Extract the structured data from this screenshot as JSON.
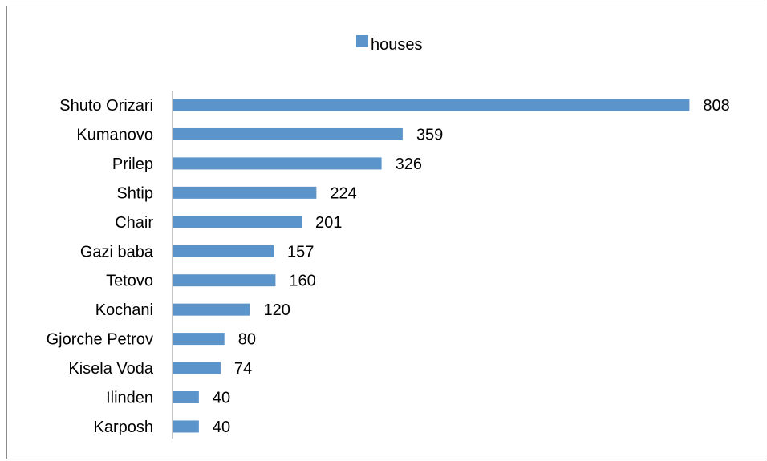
{
  "chart_data": {
    "type": "bar",
    "orientation": "horizontal",
    "categories": [
      "Shuto Orizari",
      "Kumanovo",
      "Prilep",
      "Shtip",
      "Chair",
      "Gazi baba",
      "Tetovo",
      "Kochani",
      "Gjorche Petrov",
      "Kisela Voda",
      "Ilinden",
      "Karposh"
    ],
    "series": [
      {
        "name": "houses",
        "values": [
          808,
          359,
          326,
          224,
          201,
          157,
          160,
          120,
          80,
          74,
          40,
          40
        ]
      }
    ],
    "xlim": [
      0,
      810
    ],
    "grid": false,
    "legend": "top",
    "data_labels": true,
    "colors": {
      "bar": "#5b93cb",
      "axis": "#8c8c8c"
    }
  }
}
